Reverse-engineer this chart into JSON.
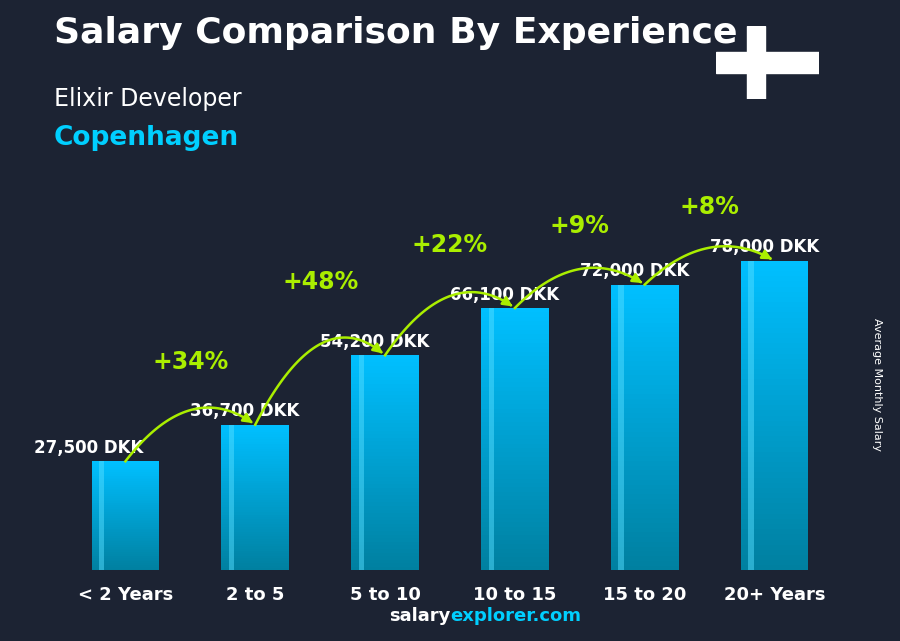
{
  "title": "Salary Comparison By Experience",
  "subtitle1": "Elixir Developer",
  "subtitle2": "Copenhagen",
  "categories": [
    "< 2 Years",
    "2 to 5",
    "5 to 10",
    "10 to 15",
    "15 to 20",
    "20+ Years"
  ],
  "values": [
    27500,
    36700,
    54200,
    66100,
    72000,
    78000
  ],
  "value_labels": [
    "27,500 DKK",
    "36,700 DKK",
    "54,200 DKK",
    "66,100 DKK",
    "72,000 DKK",
    "78,000 DKK"
  ],
  "pct_changes": [
    "+34%",
    "+48%",
    "+22%",
    "+9%",
    "+8%"
  ],
  "bar_color_face": "#00BFFF",
  "bar_color_dark": "#0080A0",
  "bg_color": "#1c2333",
  "title_color": "#FFFFFF",
  "subtitle1_color": "#FFFFFF",
  "subtitle2_color": "#00CFFF",
  "label_color": "#FFFFFF",
  "pct_color": "#AAEE00",
  "arrow_color": "#AAEE00",
  "axis_label_color": "#FFFFFF",
  "footer_salary_color": "#FFFFFF",
  "footer_explorer_color": "#00CFFF",
  "side_label": "Average Monthly Salary",
  "ylim_max": 92000,
  "title_fontsize": 26,
  "subtitle1_fontsize": 17,
  "subtitle2_fontsize": 19,
  "pct_fontsize": 17,
  "value_fontsize": 12,
  "xtick_fontsize": 13,
  "footer_fontsize": 13
}
